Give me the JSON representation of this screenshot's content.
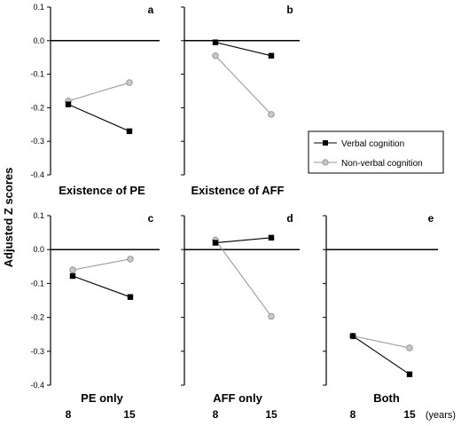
{
  "figure": {
    "ylabel": "Adjusted Z scores",
    "x_ticks": [
      "8",
      "15"
    ],
    "x_unit": "(years)",
    "legend": {
      "verbal": "Verbal cognition",
      "nonverbal": "Non-verbal cognition"
    }
  },
  "colors": {
    "verbal": "#000000",
    "nonverbal": "#999999",
    "nonverbal_fill": "#c8c8c8"
  },
  "chart_data": [
    {
      "type": "line",
      "letter": "a",
      "title": "Existence of PE",
      "x": [
        8,
        15
      ],
      "ylim": [
        -0.4,
        0.1
      ],
      "yticks": [
        "0.1",
        "0.0",
        "-0.1",
        "-0.2",
        "-0.3",
        "-0.4"
      ],
      "series": [
        {
          "name": "Verbal cognition",
          "values": [
            -0.19,
            -0.27
          ]
        },
        {
          "name": "Non-verbal cognition",
          "values": [
            -0.18,
            -0.125
          ]
        }
      ]
    },
    {
      "type": "line",
      "letter": "b",
      "title": "Existence of AFF",
      "x": [
        8,
        15
      ],
      "ylim": [
        -0.4,
        0.1
      ],
      "series": [
        {
          "name": "Verbal cognition",
          "values": [
            -0.005,
            -0.045
          ]
        },
        {
          "name": "Non-verbal cognition",
          "values": [
            -0.045,
            -0.22
          ]
        }
      ]
    },
    {
      "type": "line",
      "letter": "c",
      "title": "PE only",
      "x": [
        8,
        15
      ],
      "ylim": [
        -0.4,
        0.1
      ],
      "yticks": [
        "0.1",
        "0.0",
        "-0.1",
        "-0.2",
        "-0.3",
        "-0.4"
      ],
      "series": [
        {
          "name": "Verbal cognition",
          "values": [
            -0.078,
            -0.14
          ]
        },
        {
          "name": "Non-verbal cognition",
          "values": [
            -0.06,
            -0.028
          ]
        }
      ]
    },
    {
      "type": "line",
      "letter": "d",
      "title": "AFF only",
      "x": [
        8,
        15
      ],
      "ylim": [
        -0.4,
        0.1
      ],
      "series": [
        {
          "name": "Verbal cognition",
          "values": [
            0.02,
            0.035
          ]
        },
        {
          "name": "Non-verbal cognition",
          "values": [
            0.028,
            -0.197
          ]
        }
      ]
    },
    {
      "type": "line",
      "letter": "e",
      "title": "Both",
      "x": [
        8,
        15
      ],
      "ylim": [
        -0.4,
        0.1
      ],
      "series": [
        {
          "name": "Verbal cognition",
          "values": [
            -0.255,
            -0.368
          ]
        },
        {
          "name": "Non-verbal cognition",
          "values": [
            -0.255,
            -0.29
          ]
        }
      ]
    }
  ]
}
